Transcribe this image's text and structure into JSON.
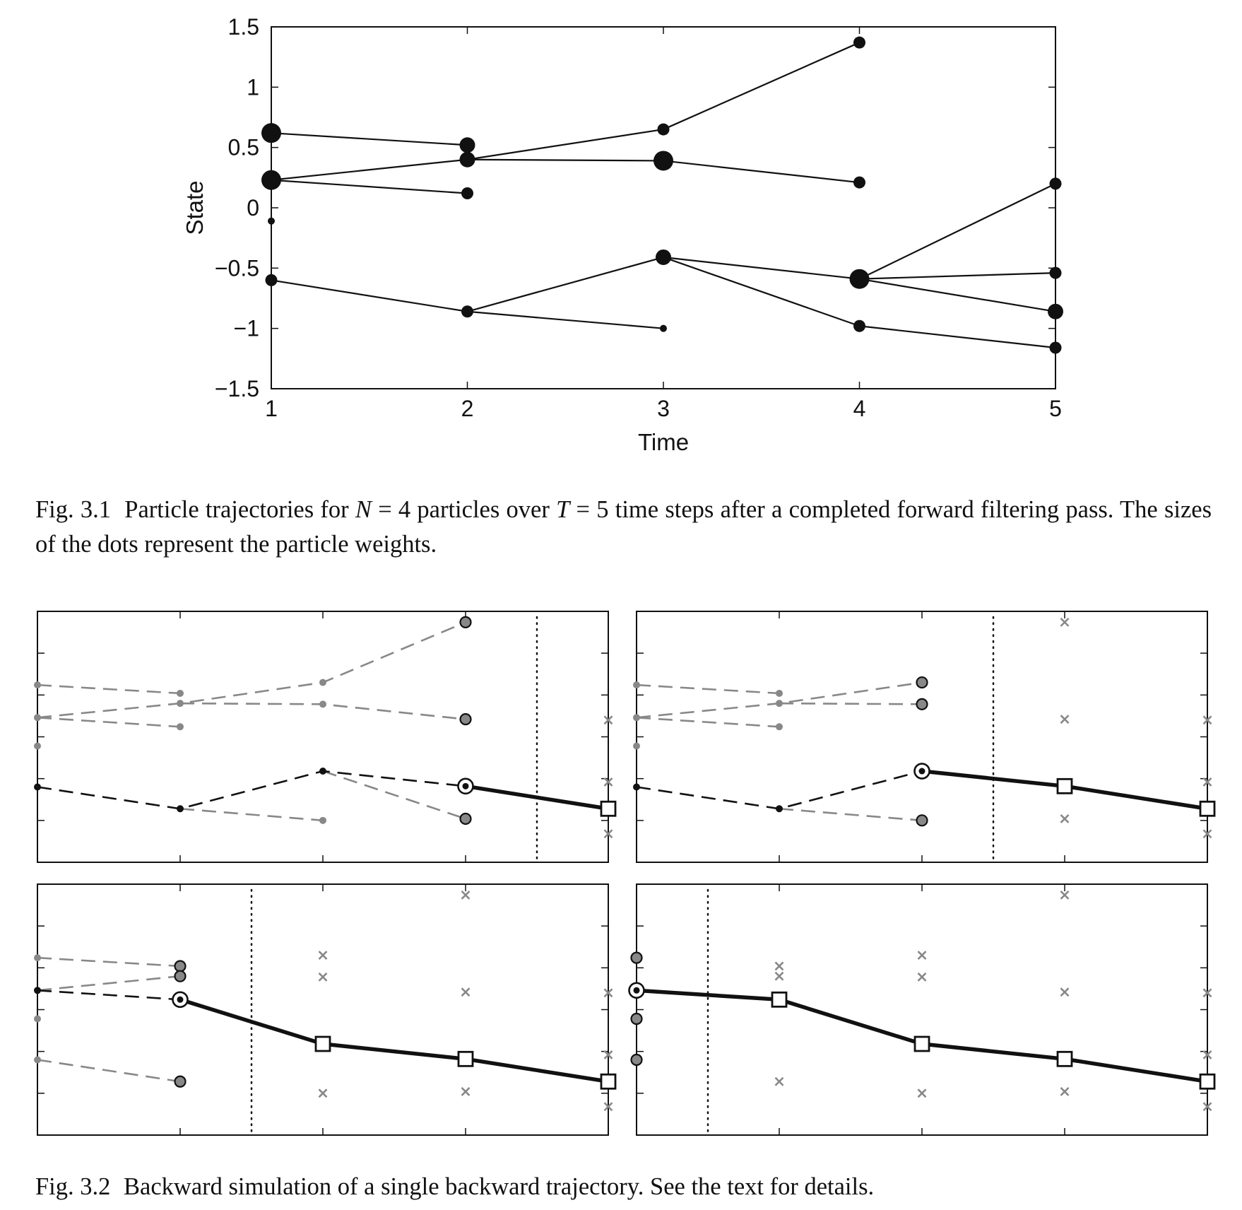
{
  "figure1": {
    "label": "Fig. 3.1",
    "caption_parts": [
      "Particle trajectories for ",
      "N",
      " = 4 particles over ",
      "T",
      " = 5 time steps after a completed forward filtering pass. The sizes of the dots represent the particle weights."
    ],
    "chart_data": {
      "type": "scatter",
      "xlabel": "Time",
      "ylabel": "State",
      "xlim": [
        1,
        5
      ],
      "ylim": [
        -1.5,
        1.5
      ],
      "xticks": [
        "1",
        "2",
        "3",
        "4",
        "5"
      ],
      "yticks": [
        "1.5",
        "1",
        "0.5",
        "0",
        "−0.5",
        "−1",
        "−1.5"
      ],
      "ytick_values": [
        1.5,
        1,
        0.5,
        0,
        -0.5,
        -1,
        -1.5
      ],
      "grid": false,
      "particles": [
        {
          "t": 1,
          "x": 0.62,
          "weight": "large"
        },
        {
          "t": 1,
          "x": 0.23,
          "weight": "large"
        },
        {
          "t": 1,
          "x": -0.11,
          "weight": "tiny"
        },
        {
          "t": 1,
          "x": -0.6,
          "weight": "small"
        },
        {
          "t": 2,
          "x": 0.52,
          "weight": "medium"
        },
        {
          "t": 2,
          "x": 0.4,
          "weight": "medium"
        },
        {
          "t": 2,
          "x": 0.12,
          "weight": "small"
        },
        {
          "t": 2,
          "x": -0.86,
          "weight": "small"
        },
        {
          "t": 3,
          "x": 0.65,
          "weight": "small"
        },
        {
          "t": 3,
          "x": 0.39,
          "weight": "large"
        },
        {
          "t": 3,
          "x": -0.41,
          "weight": "medium"
        },
        {
          "t": 3,
          "x": -1.0,
          "weight": "tiny"
        },
        {
          "t": 4,
          "x": 1.37,
          "weight": "small"
        },
        {
          "t": 4,
          "x": 0.21,
          "weight": "small"
        },
        {
          "t": 4,
          "x": -0.59,
          "weight": "large"
        },
        {
          "t": 4,
          "x": -0.98,
          "weight": "small"
        },
        {
          "t": 5,
          "x": 0.2,
          "weight": "small"
        },
        {
          "t": 5,
          "x": -0.54,
          "weight": "small"
        },
        {
          "t": 5,
          "x": -0.86,
          "weight": "medium"
        },
        {
          "t": 5,
          "x": -1.16,
          "weight": "small"
        }
      ],
      "ancestry_links": [
        {
          "from_t": 1,
          "from_x": 0.62,
          "to_t": 2,
          "to_x": 0.52
        },
        {
          "from_t": 1,
          "from_x": 0.23,
          "to_t": 2,
          "to_x": 0.4
        },
        {
          "from_t": 1,
          "from_x": 0.23,
          "to_t": 2,
          "to_x": 0.12
        },
        {
          "from_t": 1,
          "from_x": -0.6,
          "to_t": 2,
          "to_x": -0.86
        },
        {
          "from_t": 2,
          "from_x": 0.4,
          "to_t": 3,
          "to_x": 0.65
        },
        {
          "from_t": 2,
          "from_x": 0.4,
          "to_t": 3,
          "to_x": 0.39
        },
        {
          "from_t": 2,
          "from_x": -0.86,
          "to_t": 3,
          "to_x": -0.41
        },
        {
          "from_t": 2,
          "from_x": -0.86,
          "to_t": 3,
          "to_x": -1.0
        },
        {
          "from_t": 3,
          "from_x": 0.65,
          "to_t": 4,
          "to_x": 1.37
        },
        {
          "from_t": 3,
          "from_x": 0.39,
          "to_t": 4,
          "to_x": 0.21
        },
        {
          "from_t": 3,
          "from_x": -0.41,
          "to_t": 4,
          "to_x": -0.59
        },
        {
          "from_t": 3,
          "from_x": -0.41,
          "to_t": 4,
          "to_x": -0.98
        },
        {
          "from_t": 4,
          "from_x": -0.59,
          "to_t": 5,
          "to_x": 0.2
        },
        {
          "from_t": 4,
          "from_x": -0.59,
          "to_t": 5,
          "to_x": -0.54
        },
        {
          "from_t": 4,
          "from_x": -0.59,
          "to_t": 5,
          "to_x": -0.86
        },
        {
          "from_t": 4,
          "from_x": -0.98,
          "to_t": 5,
          "to_x": -1.16
        }
      ]
    }
  },
  "figure2": {
    "label": "Fig. 3.2",
    "caption": "Backward simulation of a single backward trajectory. See the text for details.",
    "chart_data": [
      {
        "panel": "top-left",
        "type": "line",
        "xlim": [
          1,
          5
        ],
        "ylim": [
          -1.5,
          1.5
        ],
        "divider_t": 4.5,
        "solid_trajectory": [
          {
            "t": 4,
            "x": -0.59
          },
          {
            "t": 5,
            "x": -0.86
          }
        ],
        "black_dashed": [
          {
            "t": 1,
            "x": -0.6
          },
          {
            "t": 2,
            "x": -0.86
          },
          {
            "t": 3,
            "x": -0.41
          },
          {
            "t": 4,
            "x": -0.59
          }
        ],
        "gray_dashed": [
          [
            {
              "t": 1,
              "x": 0.62
            },
            {
              "t": 2,
              "x": 0.52
            }
          ],
          [
            {
              "t": 1,
              "x": 0.23
            },
            {
              "t": 2,
              "x": 0.4
            },
            {
              "t": 3,
              "x": 0.65
            },
            {
              "t": 4,
              "x": 1.37
            }
          ],
          [
            {
              "t": 1,
              "x": 0.23
            },
            {
              "t": 2,
              "x": 0.12
            }
          ],
          [
            {
              "t": 2,
              "x": 0.4
            },
            {
              "t": 3,
              "x": 0.39
            },
            {
              "t": 4,
              "x": 0.21
            }
          ],
          [
            {
              "t": 2,
              "x": -0.86
            },
            {
              "t": 3,
              "x": -1.0
            }
          ],
          [
            {
              "t": 3,
              "x": -0.41
            },
            {
              "t": 4,
              "x": -0.98
            }
          ]
        ],
        "gray_dots": [
          {
            "t": 1,
            "x": 0.62
          },
          {
            "t": 1,
            "x": 0.23
          },
          {
            "t": 1,
            "x": -0.11
          },
          {
            "t": 2,
            "x": 0.52
          },
          {
            "t": 2,
            "x": 0.4
          },
          {
            "t": 2,
            "x": 0.12
          },
          {
            "t": 3,
            "x": 0.65
          },
          {
            "t": 3,
            "x": 0.39
          },
          {
            "t": 3,
            "x": -1.0
          }
        ],
        "black_dots": [
          {
            "t": 1,
            "x": -0.6
          },
          {
            "t": 2,
            "x": -0.86
          },
          {
            "t": 3,
            "x": -0.41
          }
        ],
        "gray_candidates": [
          {
            "t": 4,
            "x": 1.37
          },
          {
            "t": 4,
            "x": 0.21
          },
          {
            "t": 4,
            "x": -0.98
          }
        ],
        "selected_circle": [
          {
            "t": 4,
            "x": -0.59
          }
        ],
        "crosses": [
          {
            "t": 5,
            "x": 0.2
          },
          {
            "t": 5,
            "x": -0.54
          },
          {
            "t": 5,
            "x": -1.16
          }
        ],
        "squares": [
          {
            "t": 5,
            "x": -0.86
          }
        ]
      },
      {
        "panel": "top-right",
        "type": "line",
        "xlim": [
          1,
          5
        ],
        "ylim": [
          -1.5,
          1.5
        ],
        "divider_t": 3.5,
        "solid_trajectory": [
          {
            "t": 3,
            "x": -0.41
          },
          {
            "t": 4,
            "x": -0.59
          },
          {
            "t": 5,
            "x": -0.86
          }
        ],
        "black_dashed": [
          {
            "t": 1,
            "x": -0.6
          },
          {
            "t": 2,
            "x": -0.86
          },
          {
            "t": 3,
            "x": -0.41
          }
        ],
        "gray_dashed": [
          [
            {
              "t": 1,
              "x": 0.62
            },
            {
              "t": 2,
              "x": 0.52
            }
          ],
          [
            {
              "t": 1,
              "x": 0.23
            },
            {
              "t": 2,
              "x": 0.4
            },
            {
              "t": 3,
              "x": 0.65
            }
          ],
          [
            {
              "t": 1,
              "x": 0.23
            },
            {
              "t": 2,
              "x": 0.12
            }
          ],
          [
            {
              "t": 2,
              "x": 0.4
            },
            {
              "t": 3,
              "x": 0.39
            }
          ],
          [
            {
              "t": 2,
              "x": -0.86
            },
            {
              "t": 3,
              "x": -1.0
            }
          ]
        ],
        "gray_dots": [
          {
            "t": 1,
            "x": 0.62
          },
          {
            "t": 1,
            "x": 0.23
          },
          {
            "t": 1,
            "x": -0.11
          },
          {
            "t": 2,
            "x": 0.52
          },
          {
            "t": 2,
            "x": 0.4
          },
          {
            "t": 2,
            "x": 0.12
          }
        ],
        "black_dots": [
          {
            "t": 1,
            "x": -0.6
          },
          {
            "t": 2,
            "x": -0.86
          }
        ],
        "gray_candidates": [
          {
            "t": 3,
            "x": 0.65
          },
          {
            "t": 3,
            "x": 0.39
          },
          {
            "t": 3,
            "x": -1.0
          }
        ],
        "selected_circle": [
          {
            "t": 3,
            "x": -0.41
          }
        ],
        "crosses": [
          {
            "t": 4,
            "x": 1.37
          },
          {
            "t": 4,
            "x": 0.21
          },
          {
            "t": 4,
            "x": -0.98
          },
          {
            "t": 5,
            "x": 0.2
          },
          {
            "t": 5,
            "x": -0.54
          },
          {
            "t": 5,
            "x": -1.16
          }
        ],
        "squares": [
          {
            "t": 4,
            "x": -0.59
          },
          {
            "t": 5,
            "x": -0.86
          }
        ]
      },
      {
        "panel": "bottom-left",
        "type": "line",
        "xlim": [
          1,
          5
        ],
        "ylim": [
          -1.5,
          1.5
        ],
        "divider_t": 2.5,
        "solid_trajectory": [
          {
            "t": 2,
            "x": 0.12
          },
          {
            "t": 3,
            "x": -0.41
          },
          {
            "t": 4,
            "x": -0.59
          },
          {
            "t": 5,
            "x": -0.86
          }
        ],
        "black_dashed": [
          {
            "t": 1,
            "x": 0.23
          },
          {
            "t": 2,
            "x": 0.12
          }
        ],
        "gray_dashed": [
          [
            {
              "t": 1,
              "x": 0.62
            },
            {
              "t": 2,
              "x": 0.52
            }
          ],
          [
            {
              "t": 1,
              "x": 0.23
            },
            {
              "t": 2,
              "x": 0.4
            }
          ],
          [
            {
              "t": 1,
              "x": -0.6
            },
            {
              "t": 2,
              "x": -0.86
            }
          ]
        ],
        "gray_dots": [
          {
            "t": 1,
            "x": 0.62
          },
          {
            "t": 1,
            "x": -0.11
          },
          {
            "t": 1,
            "x": -0.6
          }
        ],
        "black_dots": [
          {
            "t": 1,
            "x": 0.23
          }
        ],
        "gray_candidates": [
          {
            "t": 2,
            "x": 0.52
          },
          {
            "t": 2,
            "x": 0.4
          },
          {
            "t": 2,
            "x": -0.86
          }
        ],
        "selected_circle": [
          {
            "t": 2,
            "x": 0.12
          }
        ],
        "crosses": [
          {
            "t": 3,
            "x": 0.65
          },
          {
            "t": 3,
            "x": 0.39
          },
          {
            "t": 3,
            "x": -1.0
          },
          {
            "t": 4,
            "x": 1.37
          },
          {
            "t": 4,
            "x": 0.21
          },
          {
            "t": 4,
            "x": -0.98
          },
          {
            "t": 5,
            "x": 0.2
          },
          {
            "t": 5,
            "x": -0.54
          },
          {
            "t": 5,
            "x": -1.16
          }
        ],
        "squares": [
          {
            "t": 3,
            "x": -0.41
          },
          {
            "t": 4,
            "x": -0.59
          },
          {
            "t": 5,
            "x": -0.86
          }
        ]
      },
      {
        "panel": "bottom-right",
        "type": "line",
        "xlim": [
          1,
          5
        ],
        "ylim": [
          -1.5,
          1.5
        ],
        "divider_t": 1.5,
        "solid_trajectory": [
          {
            "t": 1,
            "x": 0.23
          },
          {
            "t": 2,
            "x": 0.12
          },
          {
            "t": 3,
            "x": -0.41
          },
          {
            "t": 4,
            "x": -0.59
          },
          {
            "t": 5,
            "x": -0.86
          }
        ],
        "black_dashed": [],
        "gray_dashed": [],
        "gray_dots": [],
        "black_dots": [],
        "gray_candidates": [
          {
            "t": 1,
            "x": 0.62
          },
          {
            "t": 1,
            "x": -0.11
          },
          {
            "t": 1,
            "x": -0.6
          }
        ],
        "selected_circle": [
          {
            "t": 1,
            "x": 0.23
          }
        ],
        "crosses": [
          {
            "t": 2,
            "x": 0.52
          },
          {
            "t": 2,
            "x": 0.4
          },
          {
            "t": 2,
            "x": -0.86
          },
          {
            "t": 3,
            "x": 0.65
          },
          {
            "t": 3,
            "x": 0.39
          },
          {
            "t": 3,
            "x": -1.0
          },
          {
            "t": 4,
            "x": 1.37
          },
          {
            "t": 4,
            "x": 0.21
          },
          {
            "t": 4,
            "x": -0.98
          },
          {
            "t": 5,
            "x": 0.2
          },
          {
            "t": 5,
            "x": -0.54
          },
          {
            "t": 5,
            "x": -1.16
          }
        ],
        "squares": [
          {
            "t": 2,
            "x": 0.12
          },
          {
            "t": 3,
            "x": -0.41
          },
          {
            "t": 4,
            "x": -0.59
          },
          {
            "t": 5,
            "x": -0.86
          }
        ]
      }
    ]
  }
}
